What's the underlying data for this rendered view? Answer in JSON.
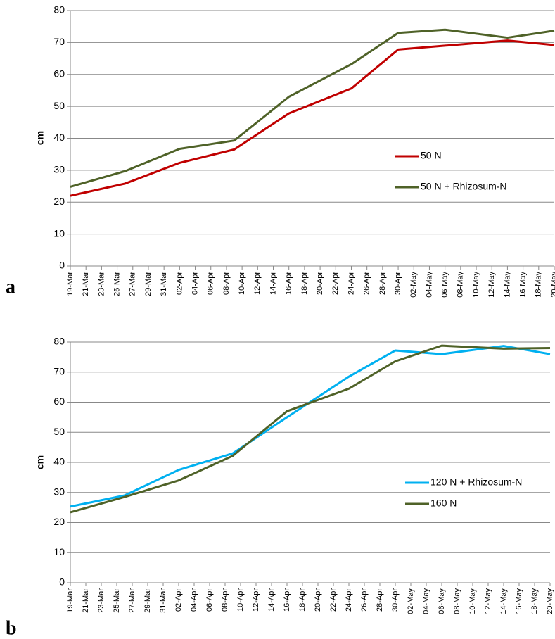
{
  "chart_data": [
    {
      "type": "line",
      "panel": "a",
      "ylabel": "cm",
      "x": [
        "19-Mar",
        "26-Mar",
        "02-Apr",
        "09-Apr",
        "16-Apr",
        "24-Apr",
        "30-Apr",
        "06-May",
        "14-May",
        "20-May"
      ],
      "series": [
        {
          "name": "50 N",
          "color": "#c00000",
          "values": [
            22,
            25.8,
            32.3,
            36.5,
            47.8,
            55.6,
            67.8,
            69,
            70.6,
            69.2
          ]
        },
        {
          "name": "50 N + Rhizosum-N",
          "color": "#4f6228",
          "values": [
            24.8,
            29.7,
            36.7,
            39.3,
            53,
            63.2,
            73,
            74,
            71.5,
            73.7
          ]
        }
      ],
      "xlim": [
        "19-Mar",
        "20-May"
      ],
      "xticks": [
        "19-Mar",
        "21-Mar",
        "23-Mar",
        "25-Mar",
        "27-Mar",
        "29-Mar",
        "31-Mar",
        "02-Apr",
        "04-Apr",
        "06-Apr",
        "08-Apr",
        "10-Apr",
        "12-Apr",
        "14-Apr",
        "16-Apr",
        "18-Apr",
        "20-Apr",
        "22-Apr",
        "24-Apr",
        "26-Apr",
        "28-Apr",
        "30-Apr",
        "02-May",
        "04-May",
        "06-May",
        "08-May",
        "10-May",
        "12-May",
        "14-May",
        "16-May",
        "18-May",
        "20-May"
      ],
      "ylim": [
        0,
        80
      ],
      "yticks": [
        0,
        10,
        20,
        30,
        40,
        50,
        60,
        70,
        80
      ],
      "grid": true,
      "legend": "right"
    },
    {
      "type": "line",
      "panel": "b",
      "ylabel": "cm",
      "x": [
        "19-Mar",
        "26-Mar",
        "02-Apr",
        "09-Apr",
        "16-Apr",
        "24-Apr",
        "30-Apr",
        "06-May",
        "14-May",
        "20-May"
      ],
      "series": [
        {
          "name": "120 N + Rhizosum-N",
          "color": "#00b0f0",
          "values": [
            25.3,
            29,
            37.5,
            43,
            55,
            68.5,
            77.2,
            76,
            78.7,
            76
          ]
        },
        {
          "name": "160 N",
          "color": "#4f6228",
          "values": [
            23.4,
            28.5,
            34,
            42.2,
            57,
            64.5,
            73.6,
            78.8,
            77.8,
            78
          ]
        }
      ],
      "xlim": [
        "19-Mar",
        "20-May"
      ],
      "xticks": [
        "19-Mar",
        "21-Mar",
        "23-Mar",
        "25-Mar",
        "27-Mar",
        "29-Mar",
        "31-Mar",
        "02-Apr",
        "04-Apr",
        "06-Apr",
        "08-Apr",
        "10-Apr",
        "12-Apr",
        "14-Apr",
        "16-Apr",
        "18-Apr",
        "20-Apr",
        "22-Apr",
        "24-Apr",
        "26-Apr",
        "28-Apr",
        "30-Apr",
        "02-May",
        "04-May",
        "06-May",
        "08-May",
        "10-May",
        "12-May",
        "14-May",
        "16-May",
        "18-May",
        "20-May"
      ],
      "ylim": [
        0,
        80
      ],
      "yticks": [
        0,
        10,
        20,
        30,
        40,
        50,
        60,
        70,
        80
      ],
      "grid": true,
      "legend": "right"
    }
  ]
}
